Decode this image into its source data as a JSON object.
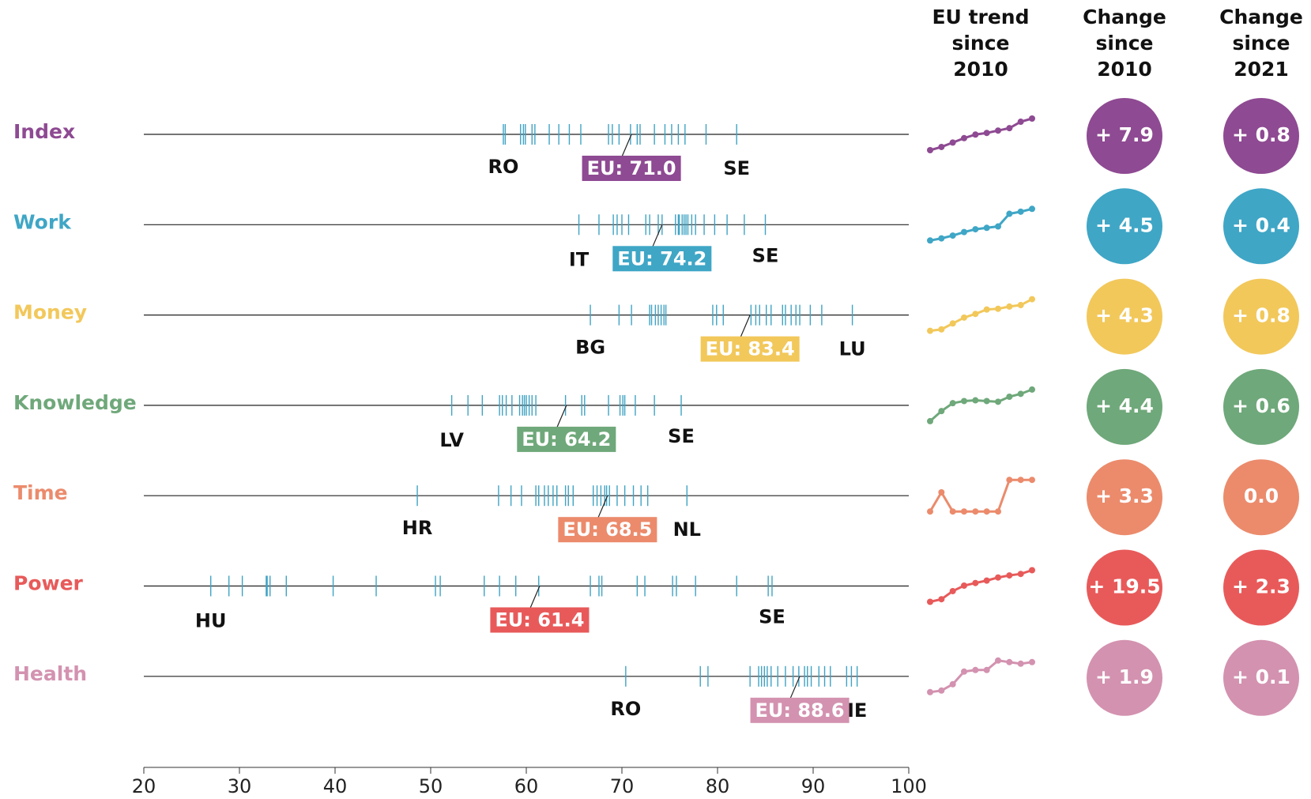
{
  "chart_data": {
    "type": "strip",
    "xlim": [
      20,
      100
    ],
    "xticks": [
      20,
      30,
      40,
      50,
      60,
      70,
      80,
      90,
      100
    ],
    "tick_color": "#3fa3c4",
    "columns": [
      [
        "EU trend",
        "since",
        "2010"
      ],
      [
        "Change",
        "since",
        "2010"
      ],
      [
        "Change",
        "since",
        "2021"
      ]
    ],
    "rows": [
      {
        "name": "Index",
        "color": "#8e4a92",
        "values": [
          57.6,
          57.8,
          59.4,
          59.7,
          59.9,
          60.6,
          60.9,
          62.4,
          63.4,
          64.5,
          65.7,
          68.6,
          69.0,
          69.7,
          70.9,
          71.6,
          71.9,
          73.4,
          74.5,
          75.2,
          75.9,
          76.6,
          78.8,
          82.0
        ],
        "low_label": "RO",
        "high_label": "SE",
        "eu": 71.0,
        "eu_label": "EU: 71.0",
        "trend": [
          63.1,
          63.9,
          65.0,
          66.1,
          67.0,
          67.4,
          68.0,
          68.6,
          70.2,
          71.0
        ],
        "change_2010": 7.9,
        "change_2010_label": "+ 7.9",
        "change_2021": 0.8,
        "change_2021_label": "+ 0.8"
      },
      {
        "name": "Work",
        "color": "#3fa6c6",
        "values": [
          65.5,
          67.6,
          69.1,
          69.5,
          70.0,
          70.7,
          72.5,
          72.9,
          73.8,
          74.2,
          75.6,
          75.9,
          76.0,
          76.3,
          76.5,
          76.7,
          76.9,
          77.3,
          77.7,
          78.6,
          79.7,
          81.0,
          82.8,
          85.0
        ],
        "low_label": "IT",
        "high_label": "SE",
        "eu": 74.2,
        "eu_label": "EU: 74.2",
        "trend": [
          69.7,
          70.0,
          70.4,
          70.9,
          71.3,
          71.5,
          71.7,
          73.5,
          73.8,
          74.2
        ],
        "change_2010": 4.5,
        "change_2010_label": "+ 4.5",
        "change_2021": 0.4,
        "change_2021_label": "+ 0.4"
      },
      {
        "name": "Money",
        "color": "#f2c85b",
        "values": [
          66.7,
          69.7,
          71.0,
          72.9,
          73.1,
          73.5,
          73.8,
          74.1,
          74.4,
          74.6,
          79.5,
          79.9,
          80.6,
          83.5,
          84.0,
          84.4,
          85.1,
          85.6,
          86.8,
          87.1,
          87.7,
          88.2,
          88.6,
          89.7,
          90.9,
          94.1
        ],
        "low_label": "BG",
        "high_label": "LU",
        "eu": 83.4,
        "eu_label": "EU: 83.4",
        "trend": [
          79.1,
          79.3,
          80.1,
          80.9,
          81.4,
          82.0,
          82.1,
          82.4,
          82.6,
          83.4
        ],
        "change_2010": 4.3,
        "change_2010_label": "+ 4.3",
        "change_2021": 0.8,
        "change_2021_label": "+ 0.8"
      },
      {
        "name": "Knowledge",
        "color": "#6fa87a",
        "values": [
          52.2,
          53.9,
          55.4,
          57.2,
          57.5,
          57.9,
          58.5,
          59.3,
          59.6,
          59.8,
          60.0,
          60.3,
          60.6,
          61.0,
          64.1,
          65.8,
          66.1,
          68.6,
          69.8,
          70.1,
          70.3,
          71.4,
          73.4,
          76.2
        ],
        "low_label": "LV",
        "high_label": "SE",
        "eu": 64.2,
        "eu_label": "EU: 64.2",
        "trend": [
          59.8,
          61.2,
          62.3,
          62.6,
          62.7,
          62.6,
          62.5,
          63.2,
          63.6,
          64.2
        ],
        "change_2010": 4.4,
        "change_2010_label": "+ 4.4",
        "change_2021": 0.6,
        "change_2021_label": "+ 0.6"
      },
      {
        "name": "Time",
        "color": "#eb8b6c",
        "values": [
          48.6,
          57.1,
          58.4,
          59.5,
          61.0,
          61.3,
          61.9,
          62.3,
          62.8,
          63.2,
          64.1,
          64.4,
          64.9,
          67.0,
          67.4,
          67.8,
          68.2,
          68.4,
          68.7,
          69.5,
          70.3,
          71.2,
          72.0,
          72.7,
          76.8
        ],
        "low_label": "HR",
        "high_label": "NL",
        "eu": 68.5,
        "eu_label": "EU: 68.5",
        "trend": [
          65.2,
          67.2,
          65.2,
          65.2,
          65.2,
          65.2,
          65.2,
          68.5,
          68.5,
          68.5
        ],
        "change_2010": 3.3,
        "change_2010_label": "+ 3.3",
        "change_2021": 0.0,
        "change_2021_label": "0.0"
      },
      {
        "name": "Power",
        "color": "#e85a5a",
        "values": [
          27.0,
          28.9,
          30.3,
          32.8,
          32.9,
          33.2,
          34.9,
          39.8,
          44.3,
          50.5,
          51.0,
          55.6,
          57.2,
          58.9,
          61.3,
          66.7,
          67.6,
          67.9,
          71.6,
          72.4,
          75.3,
          75.7,
          77.7,
          82.0,
          85.3,
          85.7
        ],
        "low_label": "HU",
        "high_label": "SE",
        "eu": 61.4,
        "eu_label": "EU: 61.4",
        "trend": [
          41.9,
          43.5,
          48.5,
          51.9,
          53.5,
          55.0,
          56.9,
          58.2,
          59.1,
          61.4
        ],
        "change_2010": 19.5,
        "change_2010_label": "+ 19.5",
        "change_2021": 2.3,
        "change_2021_label": "+ 2.3"
      },
      {
        "name": "Health",
        "color": "#d392b0",
        "values": [
          70.4,
          78.2,
          79.0,
          83.4,
          84.3,
          84.6,
          84.9,
          85.2,
          85.6,
          86.3,
          87.1,
          87.9,
          88.5,
          89.1,
          89.4,
          89.8,
          90.6,
          91.2,
          91.8,
          93.5,
          94.0,
          94.6
        ],
        "low_label": "RO",
        "high_label": "IE",
        "eu": 88.6,
        "eu_label": "EU: 88.6",
        "trend": [
          86.7,
          86.8,
          87.2,
          88.0,
          88.1,
          88.1,
          88.7,
          88.6,
          88.5,
          88.6
        ],
        "change_2010": 1.9,
        "change_2010_label": "+ 1.9",
        "change_2021": 0.1,
        "change_2021_label": "+ 0.1"
      }
    ]
  }
}
